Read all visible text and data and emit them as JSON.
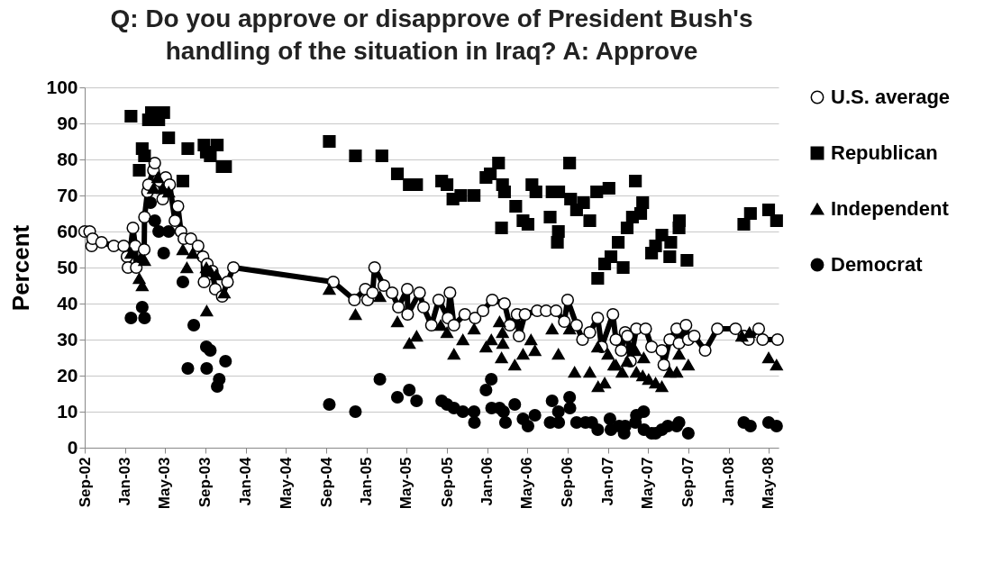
{
  "chart_data": {
    "type": "scatter",
    "title": "Q: Do you approve or disapprove of President Bush's\nhandling of the situation in Iraq? A: Approve",
    "ylabel": "Percent",
    "xlim": [
      "2002-09-01",
      "2008-05-31"
    ],
    "xticks": [
      {
        "value": "2002-09-01",
        "label": "Sep-02"
      },
      {
        "value": "2003-01-01",
        "label": "Jan-03"
      },
      {
        "value": "2003-05-01",
        "label": "May-03"
      },
      {
        "value": "2003-09-01",
        "label": "Sep-03"
      },
      {
        "value": "2004-01-01",
        "label": "Jan-04"
      },
      {
        "value": "2004-05-01",
        "label": "May-04"
      },
      {
        "value": "2004-09-01",
        "label": "Sep-04"
      },
      {
        "value": "2005-01-01",
        "label": "Jan-05"
      },
      {
        "value": "2005-05-01",
        "label": "May-05"
      },
      {
        "value": "2005-09-01",
        "label": "Sep-05"
      },
      {
        "value": "2006-01-01",
        "label": "Jan-06"
      },
      {
        "value": "2006-05-01",
        "label": "May-06"
      },
      {
        "value": "2006-09-01",
        "label": "Sep-06"
      },
      {
        "value": "2007-01-01",
        "label": "Jan-07"
      },
      {
        "value": "2007-05-01",
        "label": "May-07"
      },
      {
        "value": "2007-09-01",
        "label": "Sep-07"
      },
      {
        "value": "2008-01-01",
        "label": "Jan-08"
      },
      {
        "value": "2008-05-01",
        "label": "May-08"
      }
    ],
    "ylim": [
      0,
      100
    ],
    "yticks": [
      0,
      10,
      20,
      30,
      40,
      50,
      60,
      70,
      80,
      90,
      100
    ],
    "grid": "y",
    "legend": "right",
    "series": [
      {
        "name": "U.S. average",
        "type": "line",
        "marker": "circle",
        "color": "#000000",
        "x": [
          "2002-09-01",
          "2002-09-16",
          "2002-09-22",
          "2002-09-25",
          "2002-10-22",
          "2002-11-28",
          "2002-12-28",
          "2003-01-07",
          "2003-01-10",
          "2003-01-25",
          "2003-02-01",
          "2003-02-04",
          "2003-02-28",
          "2003-03-01",
          "2003-03-10",
          "2003-03-13",
          "2003-03-28",
          "2003-04-01",
          "2003-04-16",
          "2003-04-25",
          "2003-05-04",
          "2003-05-16",
          "2003-06-01",
          "2003-06-10",
          "2003-06-19",
          "2003-06-28",
          "2003-07-19",
          "2003-08-10",
          "2003-08-25",
          "2003-08-28",
          "2003-09-07",
          "2003-09-22",
          "2003-10-01",
          "2003-10-22",
          "2003-11-07",
          "2003-11-25",
          "2004-09-22",
          "2004-11-25",
          "2004-12-28",
          "2005-01-04",
          "2005-01-19",
          "2005-01-25",
          "2005-02-22",
          "2005-03-19",
          "2005-04-07",
          "2005-05-04",
          "2005-05-05",
          "2005-06-10",
          "2005-06-22",
          "2005-07-16",
          "2005-08-07",
          "2005-09-04",
          "2005-09-10",
          "2005-09-22",
          "2005-10-25",
          "2005-11-25",
          "2005-12-19",
          "2006-01-16",
          "2006-02-22",
          "2006-03-10",
          "2006-04-01",
          "2006-04-07",
          "2006-04-25",
          "2006-06-01",
          "2006-06-28",
          "2006-07-28",
          "2006-08-22",
          "2006-09-01",
          "2006-09-28",
          "2006-10-16",
          "2006-11-07",
          "2006-12-01",
          "2006-12-13",
          "2007-01-16",
          "2007-01-25",
          "2007-02-10",
          "2007-02-22",
          "2007-03-01",
          "2007-03-10",
          "2007-03-28",
          "2007-04-25",
          "2007-05-13",
          "2007-06-13",
          "2007-06-19",
          "2007-07-07",
          "2007-07-28",
          "2007-08-04",
          "2007-08-25",
          "2007-09-01",
          "2007-09-19",
          "2007-10-22",
          "2007-11-28",
          "2008-01-22",
          "2008-02-16",
          "2008-03-01",
          "2008-04-01",
          "2008-04-13",
          "2008-05-28"
        ],
        "values": [
          60,
          60,
          56,
          58,
          57,
          56,
          56,
          53,
          50,
          61,
          56,
          50,
          55,
          64,
          71,
          73,
          77,
          79,
          74,
          69,
          75,
          73,
          63,
          67,
          60,
          58,
          58,
          56,
          53,
          46,
          51,
          49,
          44,
          42,
          46,
          50,
          46,
          41,
          44,
          41,
          43,
          50,
          45,
          43,
          39,
          44,
          37,
          43,
          39,
          34,
          41,
          36,
          43,
          34,
          37,
          36,
          38,
          41,
          40,
          34,
          37,
          31,
          37,
          38,
          38,
          38,
          35,
          41,
          34,
          30,
          32,
          36,
          28,
          37,
          30,
          27,
          32,
          31,
          24,
          33,
          33,
          28,
          27,
          23,
          30,
          33,
          29,
          34,
          30,
          31,
          27,
          33,
          33,
          31,
          30,
          33,
          30,
          30
        ]
      },
      {
        "name": "Republican",
        "marker": "square",
        "color": "#000000",
        "x": [
          "2003-01-19",
          "2003-02-13",
          "2003-02-22",
          "2003-03-01",
          "2003-03-13",
          "2003-03-22",
          "2003-04-13",
          "2003-04-28",
          "2003-05-13",
          "2003-06-25",
          "2003-07-10",
          "2003-08-28",
          "2003-09-04",
          "2003-09-16",
          "2003-10-07",
          "2003-10-22",
          "2003-11-01",
          "2004-09-10",
          "2004-11-28",
          "2005-02-16",
          "2005-04-04",
          "2005-05-10",
          "2005-06-01",
          "2005-08-16",
          "2005-09-01",
          "2005-09-19",
          "2005-10-13",
          "2005-11-22",
          "2005-12-28",
          "2006-01-10",
          "2006-02-04",
          "2006-02-13",
          "2006-02-16",
          "2006-02-22",
          "2006-03-28",
          "2006-04-19",
          "2006-05-04",
          "2006-05-16",
          "2006-05-28",
          "2006-07-10",
          "2006-07-16",
          "2006-08-01",
          "2006-08-04",
          "2006-08-05",
          "2006-09-07",
          "2006-09-10",
          "2006-09-28",
          "2006-10-19",
          "2006-11-07",
          "2006-11-28",
          "2006-12-01",
          "2006-12-22",
          "2007-01-04",
          "2007-01-10",
          "2007-02-01",
          "2007-02-16",
          "2007-02-28",
          "2007-03-16",
          "2007-03-25",
          "2007-04-10",
          "2007-04-16",
          "2007-05-13",
          "2007-05-25",
          "2007-06-13",
          "2007-07-07",
          "2007-07-10",
          "2007-08-04",
          "2007-08-05",
          "2007-08-28",
          "2008-02-16",
          "2008-03-07",
          "2008-05-01",
          "2008-05-25"
        ],
        "values": [
          92,
          77,
          83,
          81,
          91,
          93,
          91,
          93,
          86,
          74,
          83,
          84,
          82,
          81,
          84,
          78,
          78,
          85,
          81,
          81,
          76,
          73,
          73,
          74,
          73,
          69,
          70,
          70,
          75,
          76,
          79,
          61,
          73,
          71,
          67,
          63,
          62,
          73,
          71,
          64,
          71,
          57,
          60,
          71,
          79,
          69,
          66,
          68,
          63,
          71,
          47,
          51,
          72,
          53,
          57,
          50,
          61,
          64,
          74,
          65,
          68,
          54,
          56,
          59,
          53,
          57,
          61,
          63,
          52,
          62,
          65,
          66,
          63
        ]
      },
      {
        "name": "Independent",
        "marker": "triangle",
        "color": "#000000",
        "x": [
          "2003-01-19",
          "2003-02-13",
          "2003-02-22",
          "2003-03-01",
          "2003-03-28",
          "2003-04-10",
          "2003-04-25",
          "2003-05-13",
          "2003-06-25",
          "2003-07-07",
          "2003-07-25",
          "2003-09-04",
          "2003-09-05",
          "2003-09-16",
          "2003-10-04",
          "2003-10-28",
          "2004-09-10",
          "2004-11-28",
          "2005-02-10",
          "2005-04-04",
          "2005-05-10",
          "2005-06-01",
          "2005-08-13",
          "2005-09-01",
          "2005-09-22",
          "2005-10-19",
          "2005-11-22",
          "2005-12-28",
          "2006-01-13",
          "2006-02-07",
          "2006-02-13",
          "2006-02-16",
          "2006-02-17",
          "2006-03-25",
          "2006-04-19",
          "2006-05-13",
          "2006-05-25",
          "2006-07-16",
          "2006-08-04",
          "2006-09-07",
          "2006-09-22",
          "2006-11-07",
          "2006-12-01",
          "2006-12-02",
          "2006-12-22",
          "2007-01-01",
          "2007-01-19",
          "2007-01-25",
          "2007-02-13",
          "2007-02-28",
          "2007-03-25",
          "2007-03-28",
          "2007-04-16",
          "2007-04-19",
          "2007-05-04",
          "2007-05-25",
          "2007-06-13",
          "2007-07-07",
          "2007-07-28",
          "2007-08-04",
          "2007-09-01",
          "2008-02-10",
          "2008-03-04",
          "2008-05-01",
          "2008-05-25"
        ],
        "values": [
          54,
          47,
          45,
          52,
          72,
          75,
          72,
          71,
          55,
          50,
          54,
          50,
          38,
          49,
          48,
          43,
          44,
          37,
          42,
          35,
          29,
          31,
          34,
          32,
          26,
          30,
          33,
          28,
          30,
          35,
          25,
          32,
          29,
          23,
          26,
          30,
          27,
          33,
          26,
          33,
          21,
          21,
          28,
          17,
          18,
          26,
          23,
          23,
          21,
          24,
          27,
          21,
          20,
          25,
          19,
          18,
          17,
          21,
          21,
          26,
          23,
          31,
          32,
          25,
          23
        ]
      },
      {
        "name": "Democrat",
        "marker": "circle",
        "color": "#000000",
        "x": [
          "2003-01-19",
          "2003-02-22",
          "2003-03-01",
          "2003-03-19",
          "2003-04-01",
          "2003-04-13",
          "2003-04-28",
          "2003-05-13",
          "2003-06-25",
          "2003-07-10",
          "2003-07-28",
          "2003-09-04",
          "2003-09-05",
          "2003-09-16",
          "2003-10-07",
          "2003-10-13",
          "2003-11-01",
          "2004-09-10",
          "2004-11-28",
          "2005-02-10",
          "2005-04-04",
          "2005-05-10",
          "2005-06-01",
          "2005-08-16",
          "2005-09-01",
          "2005-09-22",
          "2005-10-19",
          "2005-11-22",
          "2005-11-23",
          "2005-12-28",
          "2006-01-13",
          "2006-01-14",
          "2006-02-07",
          "2006-02-19",
          "2006-02-25",
          "2006-03-25",
          "2006-04-19",
          "2006-05-04",
          "2006-05-25",
          "2006-07-10",
          "2006-07-16",
          "2006-08-04",
          "2006-08-05",
          "2006-09-07",
          "2006-09-08",
          "2006-09-28",
          "2006-10-25",
          "2006-11-13",
          "2006-12-01",
          "2007-01-07",
          "2007-01-10",
          "2007-02-04",
          "2007-02-19",
          "2007-02-22",
          "2007-03-25",
          "2007-03-28",
          "2007-04-19",
          "2007-04-20",
          "2007-05-13",
          "2007-05-25",
          "2007-06-13",
          "2007-07-01",
          "2007-07-28",
          "2007-08-04",
          "2007-09-01",
          "2008-02-16",
          "2008-03-07",
          "2008-05-01",
          "2008-05-25"
        ],
        "values": [
          36,
          39,
          36,
          68,
          63,
          60,
          54,
          60,
          46,
          22,
          34,
          28,
          22,
          27,
          17,
          19,
          24,
          12,
          10,
          19,
          14,
          16,
          13,
          13,
          12,
          11,
          10,
          10,
          7,
          16,
          19,
          11,
          11,
          10,
          7,
          12,
          8,
          6,
          9,
          7,
          13,
          10,
          7,
          14,
          11,
          7,
          7,
          7,
          5,
          8,
          5,
          6,
          4,
          6,
          7,
          9,
          10,
          5,
          4,
          4,
          5,
          6,
          6,
          7,
          4,
          7,
          6,
          7,
          6
        ]
      }
    ]
  }
}
